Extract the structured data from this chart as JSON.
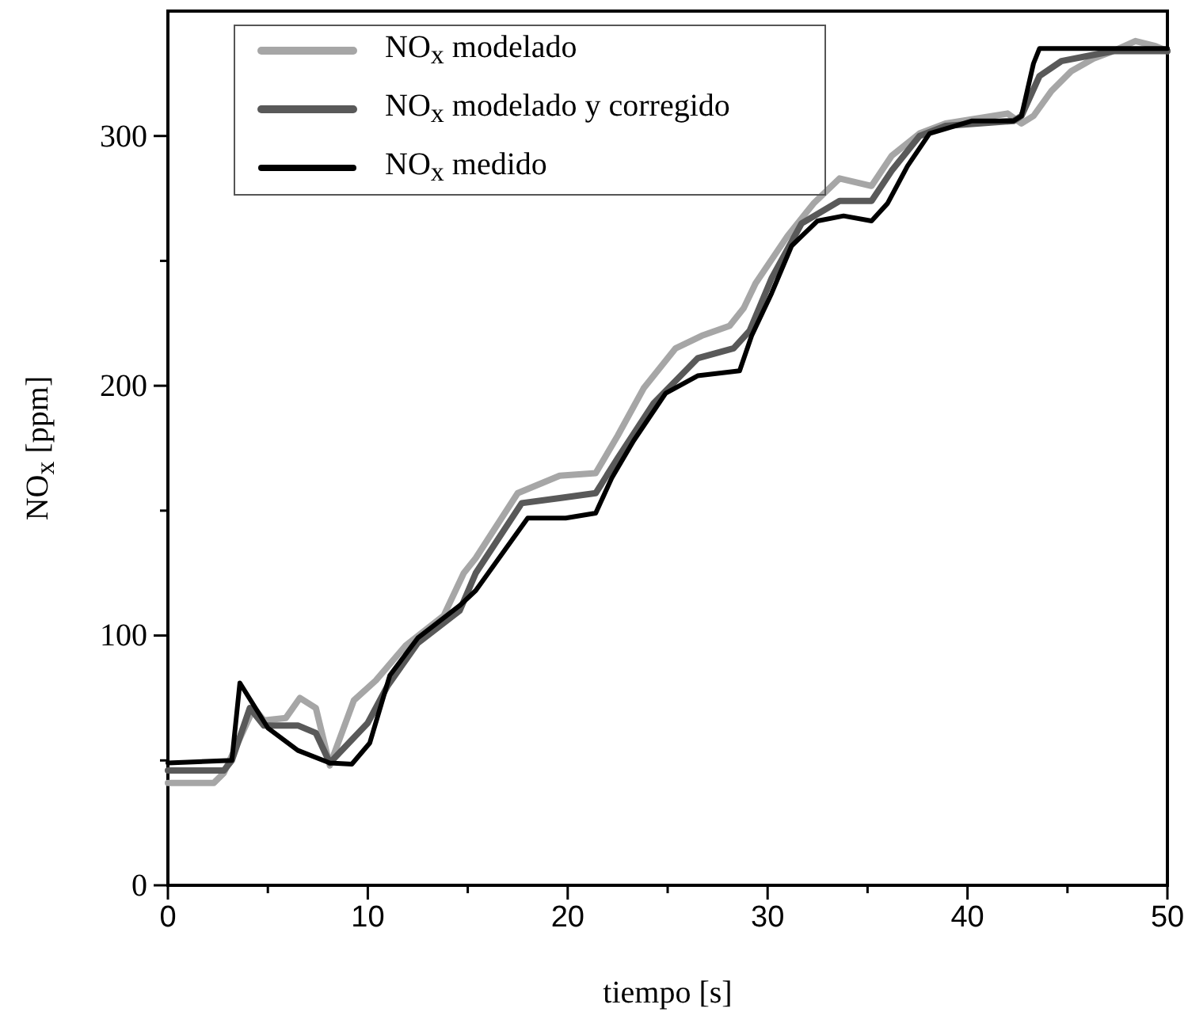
{
  "chart_data": {
    "type": "line",
    "xlabel": "tiempo [s]",
    "ylabel": "NO$_{x}$ [ppm]",
    "xlim": [
      0,
      50
    ],
    "ylim": [
      0,
      350
    ],
    "xticks": [
      0,
      {
        "value": 5,
        "label": null
      },
      10,
      {
        "value": 15,
        "label": null
      },
      20,
      {
        "value": 25,
        "label": null
      },
      30,
      {
        "value": 35,
        "label": null
      },
      40,
      {
        "value": 45,
        "label": null
      },
      50
    ],
    "yticks": [
      0,
      {
        "value": 50,
        "label": null
      },
      100,
      {
        "value": 150,
        "label": null
      },
      200,
      {
        "value": 250,
        "label": null
      },
      300
    ],
    "legend": "top left",
    "grid": false,
    "marker": "none",
    "line_style": "solid",
    "series": [
      {
        "name": "NO$_{x}$ modelado",
        "color": "#a6a6a6",
        "x": [
          0,
          2.3,
          2.8,
          4.3,
          4.8,
          5.9,
          6.6,
          7.4,
          8.1,
          9.3,
          10.4,
          11.9,
          13.8,
          14.8,
          15.4,
          17.5,
          19.6,
          21.4,
          22.5,
          23.8,
          25.4,
          26.7,
          28.1,
          28.8,
          29.4,
          31,
          32.3,
          33.6,
          35.2,
          36.2,
          37.6,
          38.9,
          42,
          42.7,
          43.3,
          44.2,
          45.2,
          46.3,
          47.3,
          48.4,
          49.4,
          50
        ],
        "values": [
          41,
          41,
          45,
          71,
          66,
          67,
          75,
          71,
          48,
          74,
          82,
          96,
          108,
          125,
          131,
          157,
          164,
          165,
          180,
          199,
          215,
          220,
          224,
          231,
          241,
          260,
          273,
          283,
          280,
          292,
          301,
          305,
          309,
          305,
          308,
          318,
          326,
          331,
          334,
          338,
          336,
          334
        ]
      },
      {
        "name": "NO$_{x}$ modelado y corregido",
        "color": "#595959",
        "x": [
          0,
          2.8,
          3.2,
          4.1,
          4.8,
          6.5,
          7.4,
          8.1,
          10,
          11,
          12.5,
          14.6,
          15.4,
          17.7,
          19.6,
          21.4,
          22.5,
          24.3,
          26.5,
          28.3,
          29.1,
          30.2,
          31.7,
          33.6,
          35.2,
          36.2,
          37.6,
          38.9,
          42.3,
          42.7,
          43.6,
          44.7,
          46,
          47.3,
          49.4,
          50
        ],
        "values": [
          46,
          46,
          50,
          71,
          64,
          64,
          61,
          49,
          65,
          80,
          97,
          110,
          125,
          153,
          155,
          157,
          171,
          193,
          211,
          215,
          222,
          243,
          265,
          274,
          274,
          286,
          300,
          304,
          306,
          308,
          324,
          330,
          332,
          334,
          334,
          334
        ]
      },
      {
        "name": "NO$_{x}$ medido",
        "color": "#000000",
        "x": [
          0,
          3.2,
          3.6,
          5,
          6.5,
          8.1,
          9.2,
          10.1,
          11.1,
          12.5,
          14.6,
          15.4,
          18,
          19.9,
          21.4,
          22.2,
          23.3,
          24.9,
          26.5,
          28.6,
          29.2,
          30.2,
          31.2,
          32.5,
          33.8,
          35.2,
          36,
          37,
          38.1,
          40.2,
          42.3,
          42.7,
          43.3,
          43.6,
          46.8,
          50
        ],
        "values": [
          49,
          50,
          81,
          63,
          54,
          49,
          48.5,
          57,
          84,
          99,
          112,
          118,
          147,
          147,
          149,
          163,
          178,
          197,
          204,
          206,
          220,
          237,
          256,
          266,
          268,
          266,
          273,
          288,
          301,
          306,
          306,
          308,
          329,
          335,
          335,
          335
        ]
      }
    ]
  }
}
